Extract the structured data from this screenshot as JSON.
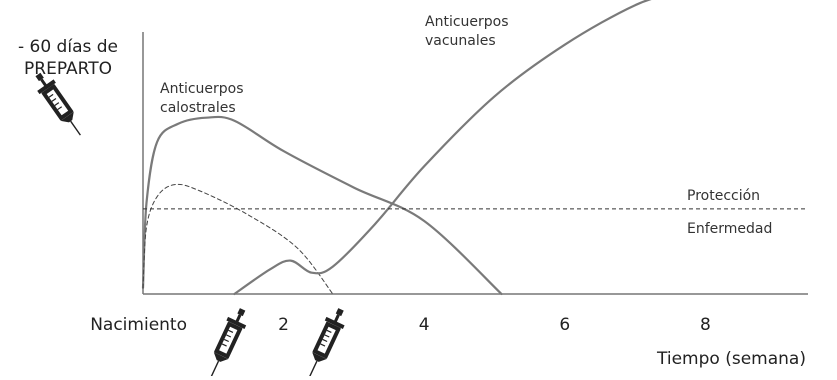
{
  "chart_data": {
    "type": "line",
    "xlabel": "Tiempo (semana)",
    "ylabel": "",
    "xlim": [
      -1.8,
      9.6
    ],
    "ylim": [
      0,
      1
    ],
    "x_tick_labels": [
      {
        "x": 0,
        "label": "Nacimiento"
      },
      {
        "x": 2,
        "label": "2"
      },
      {
        "x": 4,
        "label": "4"
      },
      {
        "x": 6,
        "label": "6"
      },
      {
        "x": 8,
        "label": "8"
      }
    ],
    "threshold": {
      "y": 0.28,
      "label_above": "Protección",
      "label_below": "Enfermedad"
    },
    "annotations": {
      "prepartum": "- 60 días de PREPARTO",
      "calostrales": "Anticuerpos calostrales",
      "vacunales": "Anticuerpos vacunales"
    },
    "vaccinations": [
      {
        "x": -1.2,
        "label": "- 60 días de PREPARTO"
      },
      {
        "x": 1.2
      },
      {
        "x": 2.6
      }
    ],
    "series": [
      {
        "name": "Anticuerpos calostrales",
        "style": "solid",
        "points": [
          [
            0,
            0.02
          ],
          [
            0.05,
            0.3
          ],
          [
            0.2,
            0.5
          ],
          [
            0.5,
            0.56
          ],
          [
            0.9,
            0.58
          ],
          [
            1.3,
            0.57
          ],
          [
            2,
            0.47
          ],
          [
            3,
            0.35
          ],
          [
            4,
            0.24
          ],
          [
            5.1,
            0.0
          ]
        ]
      },
      {
        "name": "",
        "style": "dashed",
        "points": [
          [
            0,
            0.02
          ],
          [
            0.05,
            0.22
          ],
          [
            0.2,
            0.32
          ],
          [
            0.45,
            0.36
          ],
          [
            0.8,
            0.34
          ],
          [
            1.5,
            0.26
          ],
          [
            2.2,
            0.15
          ],
          [
            2.7,
            0.0
          ]
        ]
      },
      {
        "name": "Anticuerpos vacunales",
        "style": "solid",
        "points": [
          [
            1.3,
            0.0
          ],
          [
            1.8,
            0.08
          ],
          [
            2.1,
            0.11
          ],
          [
            2.4,
            0.07
          ],
          [
            2.7,
            0.09
          ],
          [
            3.3,
            0.23
          ],
          [
            4,
            0.42
          ],
          [
            5,
            0.65
          ],
          [
            6,
            0.82
          ],
          [
            7,
            0.95
          ],
          [
            7.6,
            0.99
          ],
          [
            8,
            1.0
          ],
          [
            8.3,
            1.0
          ]
        ]
      }
    ],
    "grid": false,
    "legend": "none",
    "colors": {
      "line": "#7a7a7a",
      "axis": "#777777",
      "text": "#222222"
    }
  }
}
